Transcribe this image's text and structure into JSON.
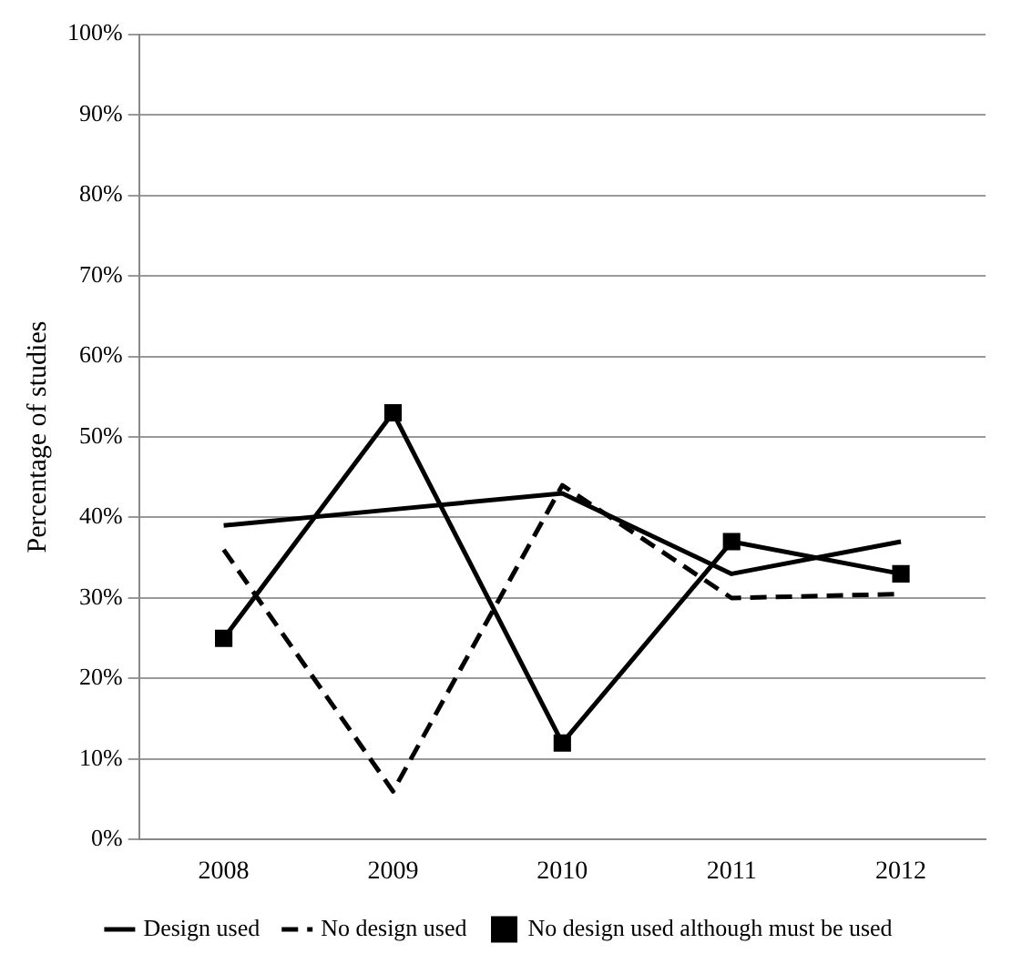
{
  "chart_data": {
    "type": "line",
    "ylabel": "Percentage of studies",
    "categories": [
      "2008",
      "2009",
      "2010",
      "2011",
      "2012"
    ],
    "series": [
      {
        "name": "Design used",
        "color": "#000000",
        "values": [
          39,
          41,
          43,
          33,
          37
        ],
        "line_style": "solid",
        "marker": "none"
      },
      {
        "name": "No design used",
        "color": "#000000",
        "values": [
          36,
          6,
          44,
          30,
          30.5
        ],
        "line_style": "dashed",
        "marker": "none"
      },
      {
        "name": "No design used although must be used",
        "color": "#000000",
        "values": [
          25,
          53,
          12,
          37,
          33
        ],
        "line_style": "solid",
        "marker": "square"
      }
    ],
    "ylim": [
      0,
      100
    ],
    "yticks": [
      {
        "value": 0,
        "label": "0%"
      },
      {
        "value": 10,
        "label": "10%"
      },
      {
        "value": 20,
        "label": "20%"
      },
      {
        "value": 30,
        "label": "30%"
      },
      {
        "value": 40,
        "label": "40%"
      },
      {
        "value": 50,
        "label": "50%"
      },
      {
        "value": 60,
        "label": "60%"
      },
      {
        "value": 70,
        "label": "70%"
      },
      {
        "value": 80,
        "label": "80%"
      },
      {
        "value": 90,
        "label": "90%"
      },
      {
        "value": 100,
        "label": "100%"
      }
    ],
    "grid": "y",
    "legend": "bottom"
  }
}
